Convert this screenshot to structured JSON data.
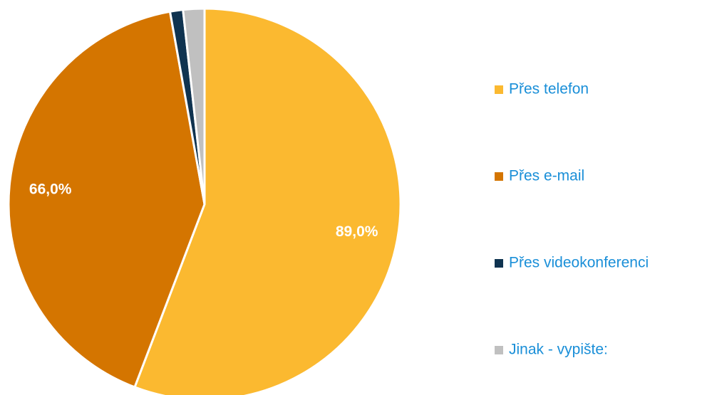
{
  "chart_data": {
    "type": "pie",
    "categories": [
      "Přes telefon",
      "Přes e-mail",
      "Přes videokonferenci",
      "Jinak - vypište:"
    ],
    "values": [
      89,
      66,
      1.7,
      2.8
    ],
    "value_labels": [
      "89,0%",
      "66,0%",
      null,
      null
    ],
    "colors": [
      "#fbb930",
      "#d47500",
      "#0f3350",
      "#c0c0c0"
    ],
    "legend": "right"
  }
}
